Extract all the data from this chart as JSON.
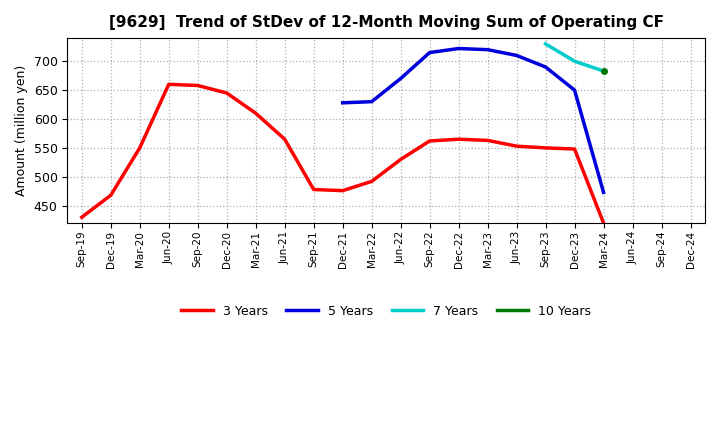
{
  "title": "[9629]  Trend of StDev of 12-Month Moving Sum of Operating CF",
  "ylabel": "Amount (million yen)",
  "background_color": "#ffffff",
  "grid_color": "#b0b0b0",
  "ylim": [
    420,
    740
  ],
  "yticks": [
    450,
    500,
    550,
    600,
    650,
    700
  ],
  "x_labels": [
    "Sep-19",
    "Dec-19",
    "Mar-20",
    "Jun-20",
    "Sep-20",
    "Dec-20",
    "Mar-21",
    "Jun-21",
    "Sep-21",
    "Dec-21",
    "Mar-22",
    "Jun-22",
    "Sep-22",
    "Dec-22",
    "Mar-23",
    "Jun-23",
    "Sep-23",
    "Dec-23",
    "Mar-24",
    "Jun-24",
    "Sep-24",
    "Dec-24"
  ],
  "series": [
    {
      "key": "3years",
      "color": "#ff0000",
      "label": "3 Years",
      "lw": 2.5,
      "points": [
        [
          0,
          430
        ],
        [
          1,
          468
        ],
        [
          2,
          550
        ],
        [
          3,
          660
        ],
        [
          4,
          658
        ],
        [
          5,
          645
        ],
        [
          6,
          610
        ],
        [
          7,
          565
        ],
        [
          8,
          478
        ],
        [
          9,
          476
        ],
        [
          10,
          492
        ],
        [
          11,
          530
        ],
        [
          12,
          562
        ],
        [
          13,
          565
        ],
        [
          14,
          563
        ],
        [
          15,
          553
        ],
        [
          16,
          550
        ],
        [
          17,
          548
        ],
        [
          18,
          420
        ]
      ]
    },
    {
      "key": "5years",
      "color": "#0000dd",
      "label": "5 Years",
      "lw": 2.5,
      "points": [
        [
          9,
          628
        ],
        [
          10,
          630
        ],
        [
          11,
          670
        ],
        [
          12,
          715
        ],
        [
          13,
          722
        ],
        [
          14,
          720
        ],
        [
          15,
          710
        ],
        [
          16,
          690
        ],
        [
          17,
          650
        ],
        [
          18,
          473
        ]
      ]
    },
    {
      "key": "7years",
      "color": "#00cccc",
      "label": "7 Years",
      "lw": 2.5,
      "points": [
        [
          16,
          730
        ],
        [
          17,
          700
        ],
        [
          18,
          683
        ]
      ]
    },
    {
      "key": "10years",
      "color": "#007700",
      "label": "10 Years",
      "lw": 2.5,
      "points": [
        [
          18,
          683
        ]
      ]
    }
  ]
}
